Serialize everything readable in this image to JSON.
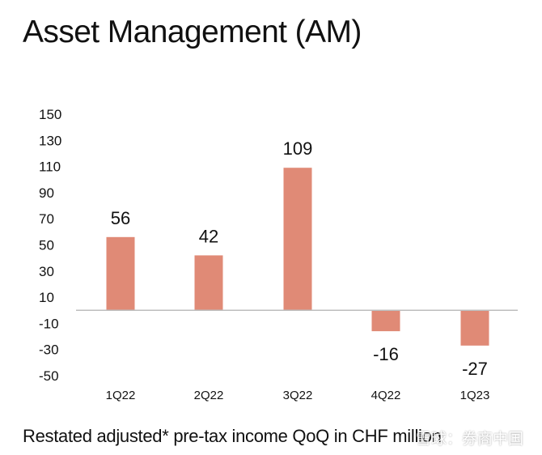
{
  "header": {
    "title": "Asset Management (AM)"
  },
  "footer": {
    "caption": "Restated adjusted* pre-tax income QoQ in CHF million"
  },
  "watermark": {
    "text": "雪球：券商中国"
  },
  "colors": {
    "bar": "#E08A76",
    "axis": "#BDBDBD",
    "text": "#111111"
  },
  "chart_data": {
    "type": "bar",
    "title": "",
    "xlabel": "",
    "ylabel": "",
    "categories": [
      "1Q22",
      "2Q22",
      "3Q22",
      "4Q22",
      "1Q23"
    ],
    "values": [
      56,
      42,
      109,
      -16,
      -27
    ],
    "data_labels": [
      "56",
      "42",
      "109",
      "-16",
      "-27"
    ],
    "yticks": [
      150,
      130,
      110,
      90,
      70,
      50,
      30,
      10,
      -10,
      -30,
      -50
    ],
    "ylim": [
      -50,
      150
    ],
    "grid": false,
    "legend": "none"
  }
}
